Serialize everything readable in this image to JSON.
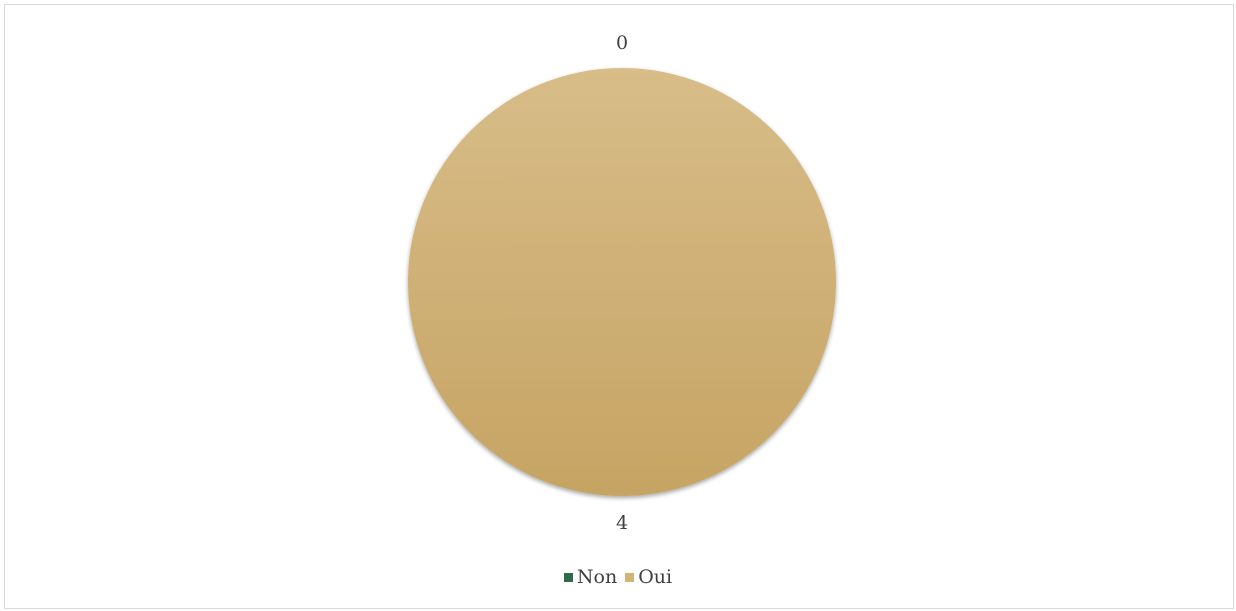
{
  "chart_data": {
    "type": "pie",
    "title": "",
    "categories": [
      "Non",
      "Oui"
    ],
    "values": [
      0,
      4
    ],
    "colors": [
      "#2e6b4a",
      "#d1b477"
    ],
    "data_labels": [
      "0",
      "4"
    ],
    "legend_position": "bottom"
  },
  "legend": {
    "items": [
      {
        "label": "Non",
        "color": "#2e6b4a"
      },
      {
        "label": "Oui",
        "color": "#d1b477"
      }
    ]
  }
}
